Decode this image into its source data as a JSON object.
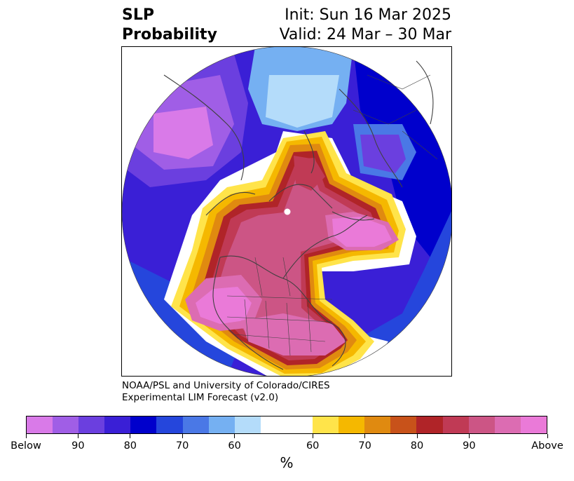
{
  "header": {
    "title_line1": "SLP",
    "title_line2": "Probability",
    "init": "Init: Sun 16 Mar 2025",
    "valid": "Valid: 24 Mar – 30 Mar"
  },
  "credit": {
    "line1": "NOAA/PSL and University of Colorado/CIRES",
    "line2": "Experimental LIM Forecast (v2.0)"
  },
  "colorbar": {
    "unit": "%",
    "colors": [
      "#d97ae8",
      "#a05ee6",
      "#6b3fdf",
      "#3a1fd6",
      "#0000cc",
      "#2546dc",
      "#4a78e6",
      "#75b0f2",
      "#b4dcfa",
      "#ffffff",
      "#ffe44a",
      "#f5b800",
      "#e08a10",
      "#c8521a",
      "#b02428",
      "#c03a55",
      "#cc5585",
      "#dc6cb2",
      "#ea7ad8"
    ],
    "tick_labels": [
      "Below",
      "90",
      "80",
      "70",
      "60",
      "60",
      "70",
      "80",
      "90",
      "Above"
    ]
  },
  "map": {
    "projection": "north polar stereographic",
    "field": "sea level pressure probability",
    "features": [
      "coastlines",
      "country borders",
      "US state borders",
      "Canadian province borders"
    ]
  }
}
